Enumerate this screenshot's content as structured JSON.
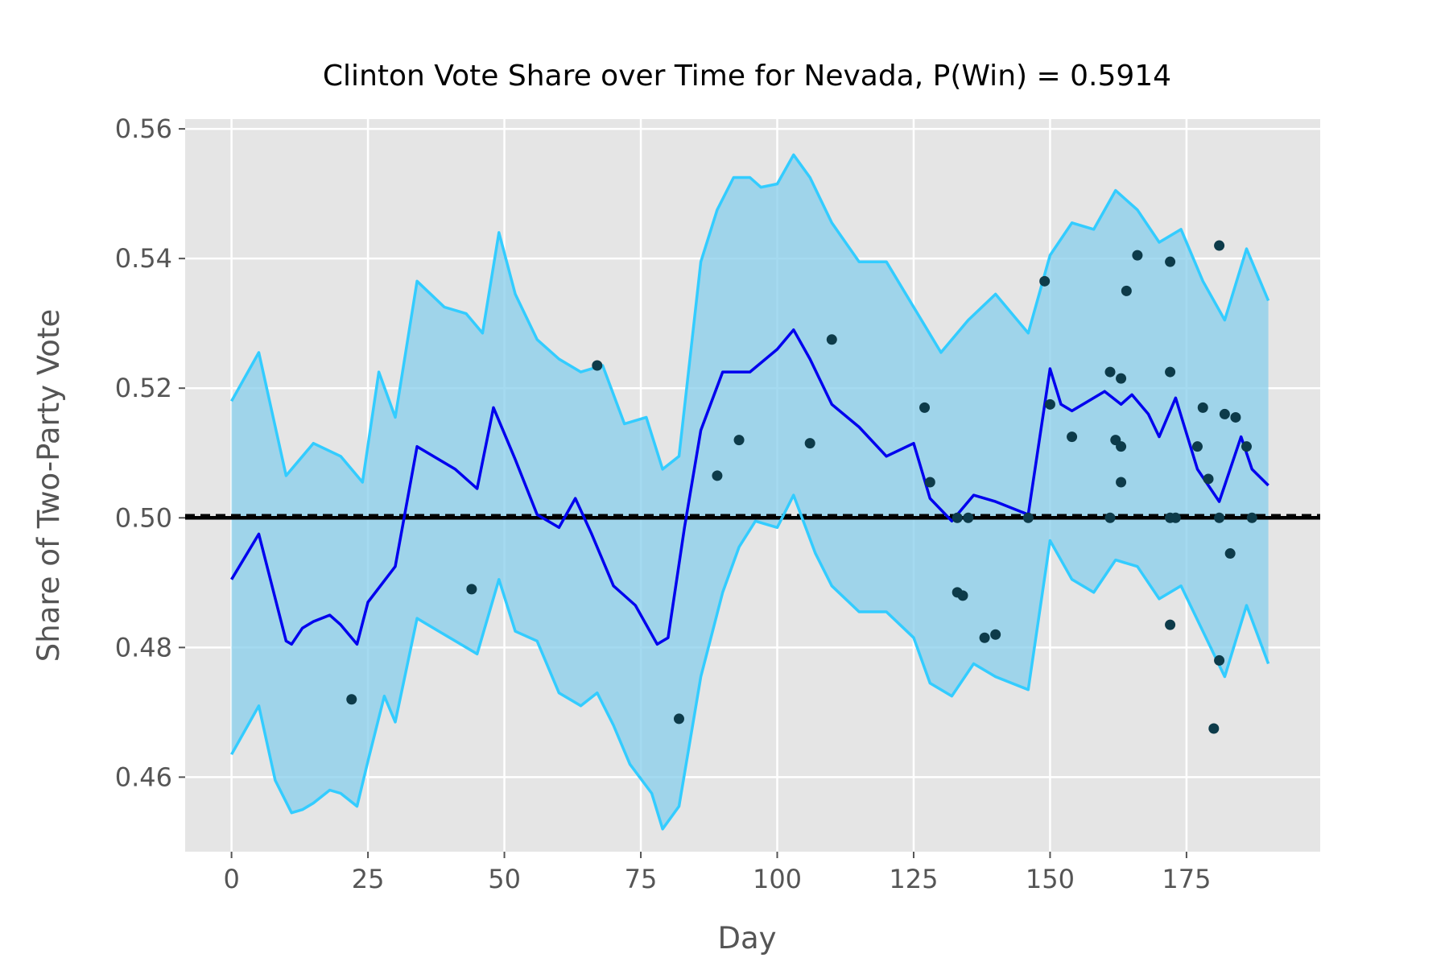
{
  "chart_data": {
    "type": "line",
    "title": "Clinton Vote Share over Time for Nevada, P(Win) = 0.5914",
    "xlabel": "Day",
    "ylabel": "Share of Two-Party Vote",
    "xlim": [
      -8.5,
      199.5
    ],
    "ylim": [
      0.4485,
      0.5615
    ],
    "x_ticks": [
      0,
      25,
      50,
      75,
      100,
      125,
      150,
      175
    ],
    "x_tick_labels": [
      "0",
      "25",
      "50",
      "75",
      "100",
      "125",
      "150",
      "175"
    ],
    "y_ticks": [
      0.46,
      0.48,
      0.5,
      0.52,
      0.54,
      0.56
    ],
    "y_tick_labels": [
      "0.46",
      "0.48",
      "0.50",
      "0.52",
      "0.54",
      "0.56"
    ],
    "grid": true,
    "colors": {
      "background": "#e5e5e5",
      "grid": "#ffffff",
      "mean_line": "#0000ee",
      "band_fill": "#87ceeb",
      "band_edge": "#33ccff",
      "reference_line": "#000000",
      "poll_point": "#0d3b4a"
    },
    "series": [
      {
        "role": "mean",
        "x": [
          0,
          5,
          10,
          11,
          13,
          15,
          18,
          20,
          23,
          25,
          30,
          34,
          41,
          45,
          48,
          52,
          56,
          60,
          63,
          66,
          70,
          74,
          78,
          80,
          83,
          86,
          90,
          95,
          100,
          103,
          106,
          110,
          115,
          120,
          125,
          128,
          132,
          136,
          140,
          146,
          150,
          152,
          154,
          160,
          163,
          165,
          168,
          170,
          173,
          177,
          181,
          185,
          187,
          190
        ],
        "y": [
          0.4905,
          0.4975,
          0.481,
          0.4805,
          0.483,
          0.484,
          0.485,
          0.4835,
          0.4805,
          0.487,
          0.4925,
          0.511,
          0.5075,
          0.5045,
          0.517,
          0.509,
          0.5005,
          0.4985,
          0.503,
          0.4975,
          0.4895,
          0.4865,
          0.4805,
          0.4815,
          0.4985,
          0.5135,
          0.5225,
          0.5225,
          0.526,
          0.529,
          0.5245,
          0.5175,
          0.514,
          0.5095,
          0.5115,
          0.503,
          0.4995,
          0.5035,
          0.5025,
          0.5005,
          0.523,
          0.5175,
          0.5165,
          0.5195,
          0.5175,
          0.519,
          0.516,
          0.5125,
          0.5185,
          0.5075,
          0.5025,
          0.5125,
          0.5075,
          0.505
        ]
      },
      {
        "role": "upper_bound",
        "x": [
          0,
          5,
          10,
          15,
          20,
          24,
          27,
          30,
          34,
          39,
          43,
          46,
          49,
          52,
          56,
          60,
          64,
          68,
          72,
          76,
          79,
          82,
          86,
          89,
          92,
          95,
          97,
          100,
          103,
          106,
          110,
          115,
          120,
          125,
          130,
          135,
          140,
          146,
          150,
          154,
          158,
          162,
          166,
          170,
          174,
          178,
          182,
          186,
          190
        ],
        "y": [
          0.518,
          0.5255,
          0.5065,
          0.5115,
          0.5095,
          0.5055,
          0.5225,
          0.5155,
          0.5365,
          0.5325,
          0.5315,
          0.5285,
          0.544,
          0.5345,
          0.5275,
          0.5245,
          0.5225,
          0.5235,
          0.5145,
          0.5155,
          0.5075,
          0.5095,
          0.5395,
          0.5475,
          0.5525,
          0.5525,
          0.551,
          0.5515,
          0.556,
          0.5525,
          0.5455,
          0.5395,
          0.5395,
          0.5325,
          0.5255,
          0.5305,
          0.5345,
          0.5285,
          0.5405,
          0.5455,
          0.5445,
          0.5505,
          0.5475,
          0.5425,
          0.5445,
          0.5365,
          0.5305,
          0.5415,
          0.5335
        ]
      },
      {
        "role": "lower_bound",
        "x": [
          0,
          5,
          8,
          11,
          13,
          15,
          18,
          20,
          23,
          25,
          28,
          30,
          34,
          38,
          42,
          45,
          49,
          52,
          56,
          60,
          64,
          67,
          70,
          73,
          77,
          79,
          82,
          86,
          90,
          93,
          96,
          100,
          103,
          107,
          110,
          115,
          120,
          125,
          128,
          132,
          136,
          140,
          146,
          150,
          154,
          158,
          162,
          166,
          170,
          174,
          178,
          182,
          186,
          190
        ],
        "y": [
          0.4635,
          0.471,
          0.4595,
          0.4545,
          0.455,
          0.456,
          0.458,
          0.4575,
          0.4555,
          0.4625,
          0.4725,
          0.4685,
          0.4845,
          0.4825,
          0.4805,
          0.479,
          0.4905,
          0.4825,
          0.481,
          0.473,
          0.471,
          0.473,
          0.468,
          0.462,
          0.4575,
          0.452,
          0.4555,
          0.4755,
          0.4885,
          0.4955,
          0.4995,
          0.4985,
          0.5035,
          0.4945,
          0.4895,
          0.4855,
          0.4855,
          0.4815,
          0.4745,
          0.4725,
          0.4775,
          0.4755,
          0.4735,
          0.4965,
          0.4905,
          0.4885,
          0.4935,
          0.4925,
          0.4875,
          0.4895,
          0.4825,
          0.4755,
          0.4865,
          0.4775
        ]
      }
    ],
    "reference_lines": [
      {
        "style": "solid",
        "y": 0.5
      },
      {
        "style": "dashed",
        "y": 0.5004
      }
    ],
    "points": [
      [
        22,
        0.472
      ],
      [
        44,
        0.489
      ],
      [
        67,
        0.5235
      ],
      [
        82,
        0.469
      ],
      [
        89,
        0.5065
      ],
      [
        93,
        0.512
      ],
      [
        106,
        0.5115
      ],
      [
        110,
        0.5275
      ],
      [
        127,
        0.517
      ],
      [
        128,
        0.5055
      ],
      [
        133,
        0.4885
      ],
      [
        134,
        0.488
      ],
      [
        133,
        0.5
      ],
      [
        135,
        0.5
      ],
      [
        138,
        0.4815
      ],
      [
        140,
        0.482
      ],
      [
        146,
        0.5
      ],
      [
        149,
        0.5365
      ],
      [
        150,
        0.5175
      ],
      [
        154,
        0.5125
      ],
      [
        161,
        0.5225
      ],
      [
        161,
        0.5
      ],
      [
        162,
        0.512
      ],
      [
        163,
        0.5215
      ],
      [
        163,
        0.5055
      ],
      [
        163,
        0.511
      ],
      [
        164,
        0.535
      ],
      [
        166,
        0.5405
      ],
      [
        172,
        0.5395
      ],
      [
        172,
        0.5225
      ],
      [
        172,
        0.5
      ],
      [
        173,
        0.5
      ],
      [
        172,
        0.4835
      ],
      [
        177,
        0.511
      ],
      [
        178,
        0.517
      ],
      [
        179,
        0.506
      ],
      [
        180,
        0.4675
      ],
      [
        181,
        0.542
      ],
      [
        181,
        0.5
      ],
      [
        181,
        0.478
      ],
      [
        182,
        0.516
      ],
      [
        183,
        0.4945
      ],
      [
        184,
        0.5155
      ],
      [
        186,
        0.511
      ],
      [
        187,
        0.5
      ]
    ]
  }
}
